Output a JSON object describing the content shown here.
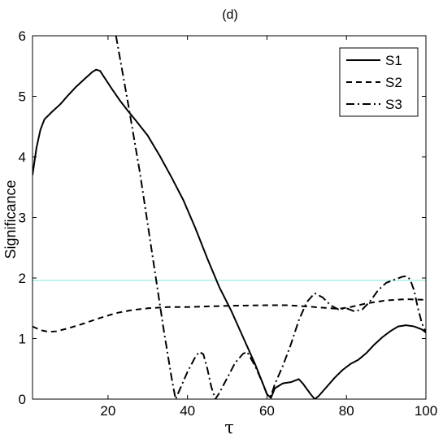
{
  "chart_data": {
    "type": "line",
    "title": "(d)",
    "xlabel": "τ",
    "ylabel": "Significance",
    "xlim": [
      1,
      100
    ],
    "ylim": [
      0,
      6
    ],
    "xticks": [
      20,
      40,
      60,
      80,
      100
    ],
    "yticks": [
      0,
      1,
      2,
      3,
      4,
      5,
      6
    ],
    "grid": false,
    "legend_position": "top-right",
    "threshold": {
      "y": 1.96,
      "color": "#7fe8d8"
    },
    "series": [
      {
        "name": "S1",
        "style": "solid",
        "points": [
          [
            1,
            3.7
          ],
          [
            2,
            4.15
          ],
          [
            3,
            4.45
          ],
          [
            4,
            4.62
          ],
          [
            6,
            4.75
          ],
          [
            8,
            4.87
          ],
          [
            10,
            5.02
          ],
          [
            12,
            5.16
          ],
          [
            14,
            5.28
          ],
          [
            16,
            5.4
          ],
          [
            17,
            5.44
          ],
          [
            18,
            5.42
          ],
          [
            19,
            5.32
          ],
          [
            21,
            5.12
          ],
          [
            23,
            4.93
          ],
          [
            25,
            4.76
          ],
          [
            27,
            4.6
          ],
          [
            30,
            4.35
          ],
          [
            33,
            4.02
          ],
          [
            36,
            3.66
          ],
          [
            39,
            3.28
          ],
          [
            42,
            2.82
          ],
          [
            45,
            2.32
          ],
          [
            48,
            1.85
          ],
          [
            51,
            1.46
          ],
          [
            54,
            1.02
          ],
          [
            57,
            0.58
          ],
          [
            59,
            0.25
          ],
          [
            60,
            0.08
          ],
          [
            61,
            0.02
          ],
          [
            62,
            0.18
          ],
          [
            64,
            0.26
          ],
          [
            66,
            0.28
          ],
          [
            68,
            0.33
          ],
          [
            69,
            0.26
          ],
          [
            71,
            0.08
          ],
          [
            72,
            0.0
          ],
          [
            73,
            0.05
          ],
          [
            75,
            0.2
          ],
          [
            77,
            0.35
          ],
          [
            79,
            0.48
          ],
          [
            81,
            0.58
          ],
          [
            83,
            0.65
          ],
          [
            85,
            0.76
          ],
          [
            87,
            0.9
          ],
          [
            89,
            1.02
          ],
          [
            91,
            1.12
          ],
          [
            93,
            1.2
          ],
          [
            95,
            1.22
          ],
          [
            97,
            1.2
          ],
          [
            99,
            1.15
          ],
          [
            100,
            1.1
          ]
        ]
      },
      {
        "name": "S2",
        "style": "dashed",
        "points": [
          [
            1,
            1.2
          ],
          [
            3,
            1.14
          ],
          [
            5,
            1.11
          ],
          [
            7,
            1.12
          ],
          [
            10,
            1.17
          ],
          [
            14,
            1.25
          ],
          [
            18,
            1.34
          ],
          [
            22,
            1.42
          ],
          [
            26,
            1.47
          ],
          [
            30,
            1.5
          ],
          [
            35,
            1.52
          ],
          [
            40,
            1.52
          ],
          [
            50,
            1.54
          ],
          [
            60,
            1.55
          ],
          [
            65,
            1.55
          ],
          [
            70,
            1.53
          ],
          [
            74,
            1.51
          ],
          [
            78,
            1.49
          ],
          [
            81,
            1.52
          ],
          [
            85,
            1.58
          ],
          [
            90,
            1.63
          ],
          [
            95,
            1.65
          ],
          [
            100,
            1.64
          ]
        ]
      },
      {
        "name": "S3",
        "style": "dashdot",
        "points": [
          [
            22,
            6.0
          ],
          [
            25,
            4.9
          ],
          [
            28,
            3.75
          ],
          [
            31,
            2.45
          ],
          [
            34,
            1.15
          ],
          [
            36,
            0.35
          ],
          [
            37,
            0.0
          ],
          [
            38,
            0.15
          ],
          [
            40,
            0.45
          ],
          [
            42,
            0.7
          ],
          [
            43,
            0.78
          ],
          [
            44,
            0.74
          ],
          [
            45,
            0.5
          ],
          [
            46,
            0.2
          ],
          [
            47,
            0.0
          ],
          [
            48,
            0.1
          ],
          [
            50,
            0.35
          ],
          [
            52,
            0.6
          ],
          [
            54,
            0.75
          ],
          [
            55,
            0.78
          ],
          [
            57,
            0.55
          ],
          [
            59,
            0.25
          ],
          [
            60,
            0.08
          ],
          [
            61,
            0.05
          ],
          [
            62,
            0.25
          ],
          [
            64,
            0.55
          ],
          [
            66,
            0.9
          ],
          [
            68,
            1.3
          ],
          [
            70,
            1.6
          ],
          [
            72,
            1.75
          ],
          [
            74,
            1.68
          ],
          [
            76,
            1.55
          ],
          [
            78,
            1.48
          ],
          [
            80,
            1.5
          ],
          [
            82,
            1.45
          ],
          [
            84,
            1.48
          ],
          [
            86,
            1.62
          ],
          [
            88,
            1.8
          ],
          [
            90,
            1.92
          ],
          [
            92,
            1.97
          ],
          [
            94,
            2.02
          ],
          [
            95,
            2.03
          ],
          [
            96,
            1.98
          ],
          [
            97,
            1.8
          ],
          [
            98,
            1.5
          ],
          [
            99,
            1.25
          ],
          [
            100,
            1.1
          ]
        ]
      }
    ]
  }
}
